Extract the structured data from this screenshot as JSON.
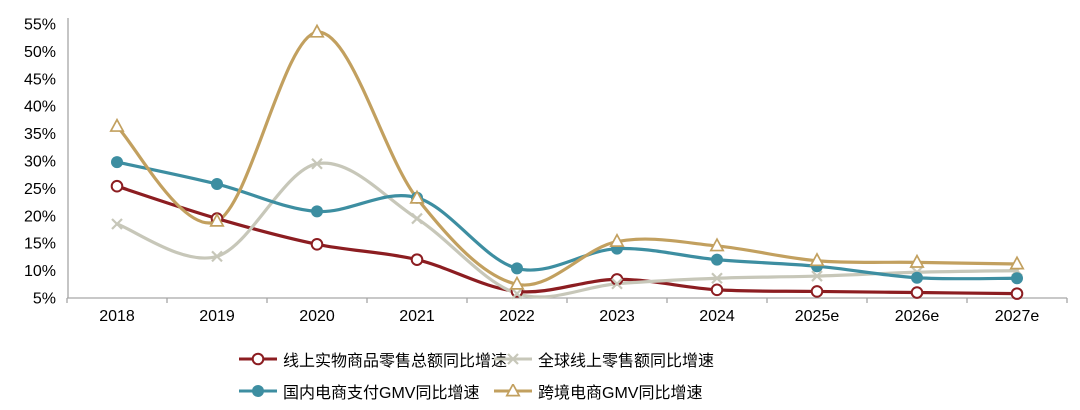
{
  "chart_data": {
    "type": "line",
    "title": "",
    "categories": [
      "2018",
      "2019",
      "2020",
      "2021",
      "2022",
      "2023",
      "2024",
      "2025e",
      "2026e",
      "2027e"
    ],
    "series": [
      {
        "name": "线上实物商品零售总额同比增速",
        "color": "#8C1D21",
        "marker": "open-circle",
        "values": [
          25.4,
          19.5,
          14.8,
          12.0,
          6.2,
          8.4,
          6.5,
          6.2,
          6.0,
          5.8
        ]
      },
      {
        "name": "全球线上零售额同比增速",
        "color": "#C7C7B9",
        "marker": "x",
        "values": [
          18.5,
          12.6,
          29.5,
          19.5,
          5.8,
          7.6,
          8.6,
          9.0,
          9.7,
          10.0
        ]
      },
      {
        "name": "国内电商支付GMV同比增速",
        "color": "#3D8EA1",
        "marker": "filled-circle",
        "values": [
          29.8,
          25.8,
          20.8,
          23.3,
          10.4,
          14.0,
          12.0,
          10.8,
          8.7,
          8.6
        ]
      },
      {
        "name": "跨境电商GMV同比增速",
        "color": "#C2A05F",
        "marker": "open-triangle",
        "values": [
          36.3,
          19.0,
          53.5,
          23.2,
          7.5,
          15.3,
          14.5,
          11.8,
          11.5,
          11.2
        ]
      }
    ],
    "y_axis": {
      "min": 5,
      "max": 55,
      "step": 5,
      "labels": [
        "55%",
        "50%",
        "45%",
        "40%",
        "35%",
        "30%",
        "25%",
        "20%",
        "15%",
        "10%",
        "5%"
      ]
    },
    "x_axis": {
      "labels": [
        "2018",
        "2019",
        "2020",
        "2021",
        "2022",
        "2023",
        "2024",
        "2025e",
        "2026e",
        "2027e"
      ]
    },
    "legend_position": "bottom",
    "grid": false,
    "axis_color": "#A6A6A6",
    "text_color": "#000000",
    "background": "#FFFFFF"
  }
}
